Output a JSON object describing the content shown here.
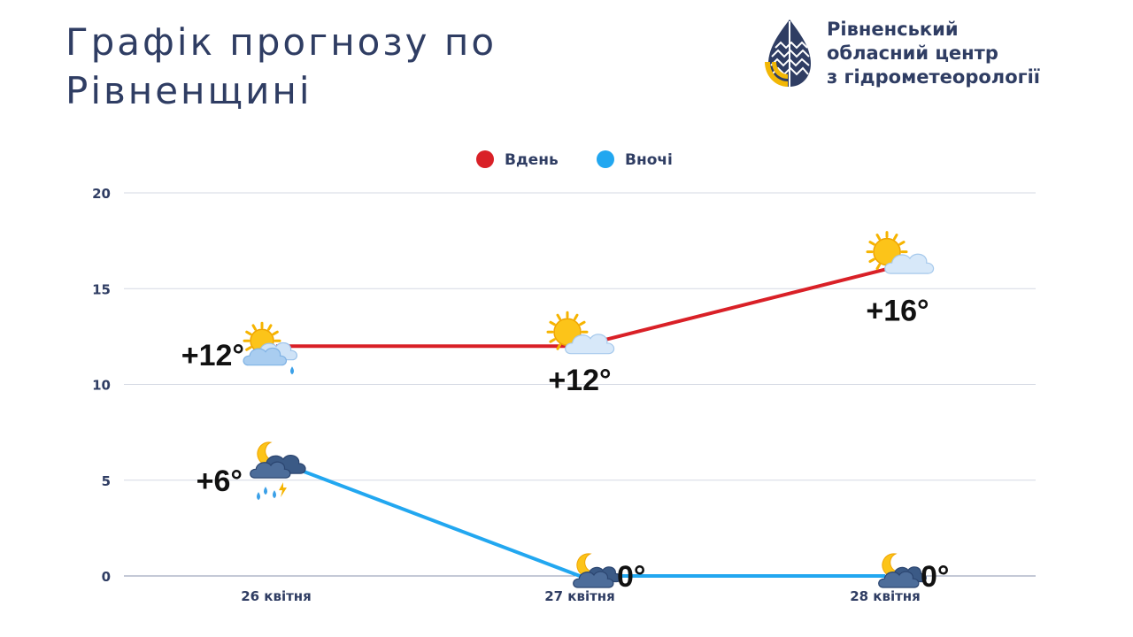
{
  "header": {
    "title_line1": "Графік прогнозу по",
    "title_line2": "Рівненщині"
  },
  "logo": {
    "line1": "Рівненський",
    "line2": "обласний центр",
    "line3": "з гідрометеорології",
    "icon": "leaf-drop-logo"
  },
  "colors": {
    "day": "#d92027",
    "night": "#22a7f0",
    "text": "#2f3d63",
    "grid": "#d5d9e3",
    "logo_blue": "#2f3d63",
    "logo_yellow": "#f2b705"
  },
  "chart_data": {
    "type": "line",
    "title": "Графік прогнозу по Рівненщині",
    "xlabel": "",
    "ylabel": "",
    "categories": [
      "26 квітня",
      "27 квітня",
      "28 квітня"
    ],
    "ylim": [
      0,
      20
    ],
    "yticks": [
      0,
      5,
      10,
      15,
      20
    ],
    "grid": true,
    "legend_position": "top-center",
    "series": [
      {
        "name": "Вдень",
        "color": "#d92027",
        "values": [
          12,
          12,
          16
        ],
        "labels": [
          "+12°",
          "+12°",
          "+16°"
        ],
        "icons": [
          "sun-cloud-rain-icon",
          "sun-cloud-icon",
          "sun-cloud-icon"
        ]
      },
      {
        "name": "Вночі",
        "color": "#22a7f0",
        "values": [
          6,
          0,
          0
        ],
        "labels": [
          "+6°",
          "0°",
          "0°"
        ],
        "icons": [
          "moon-cloud-thunderstorm-icon",
          "moon-cloud-icon",
          "moon-cloud-icon"
        ]
      }
    ]
  }
}
